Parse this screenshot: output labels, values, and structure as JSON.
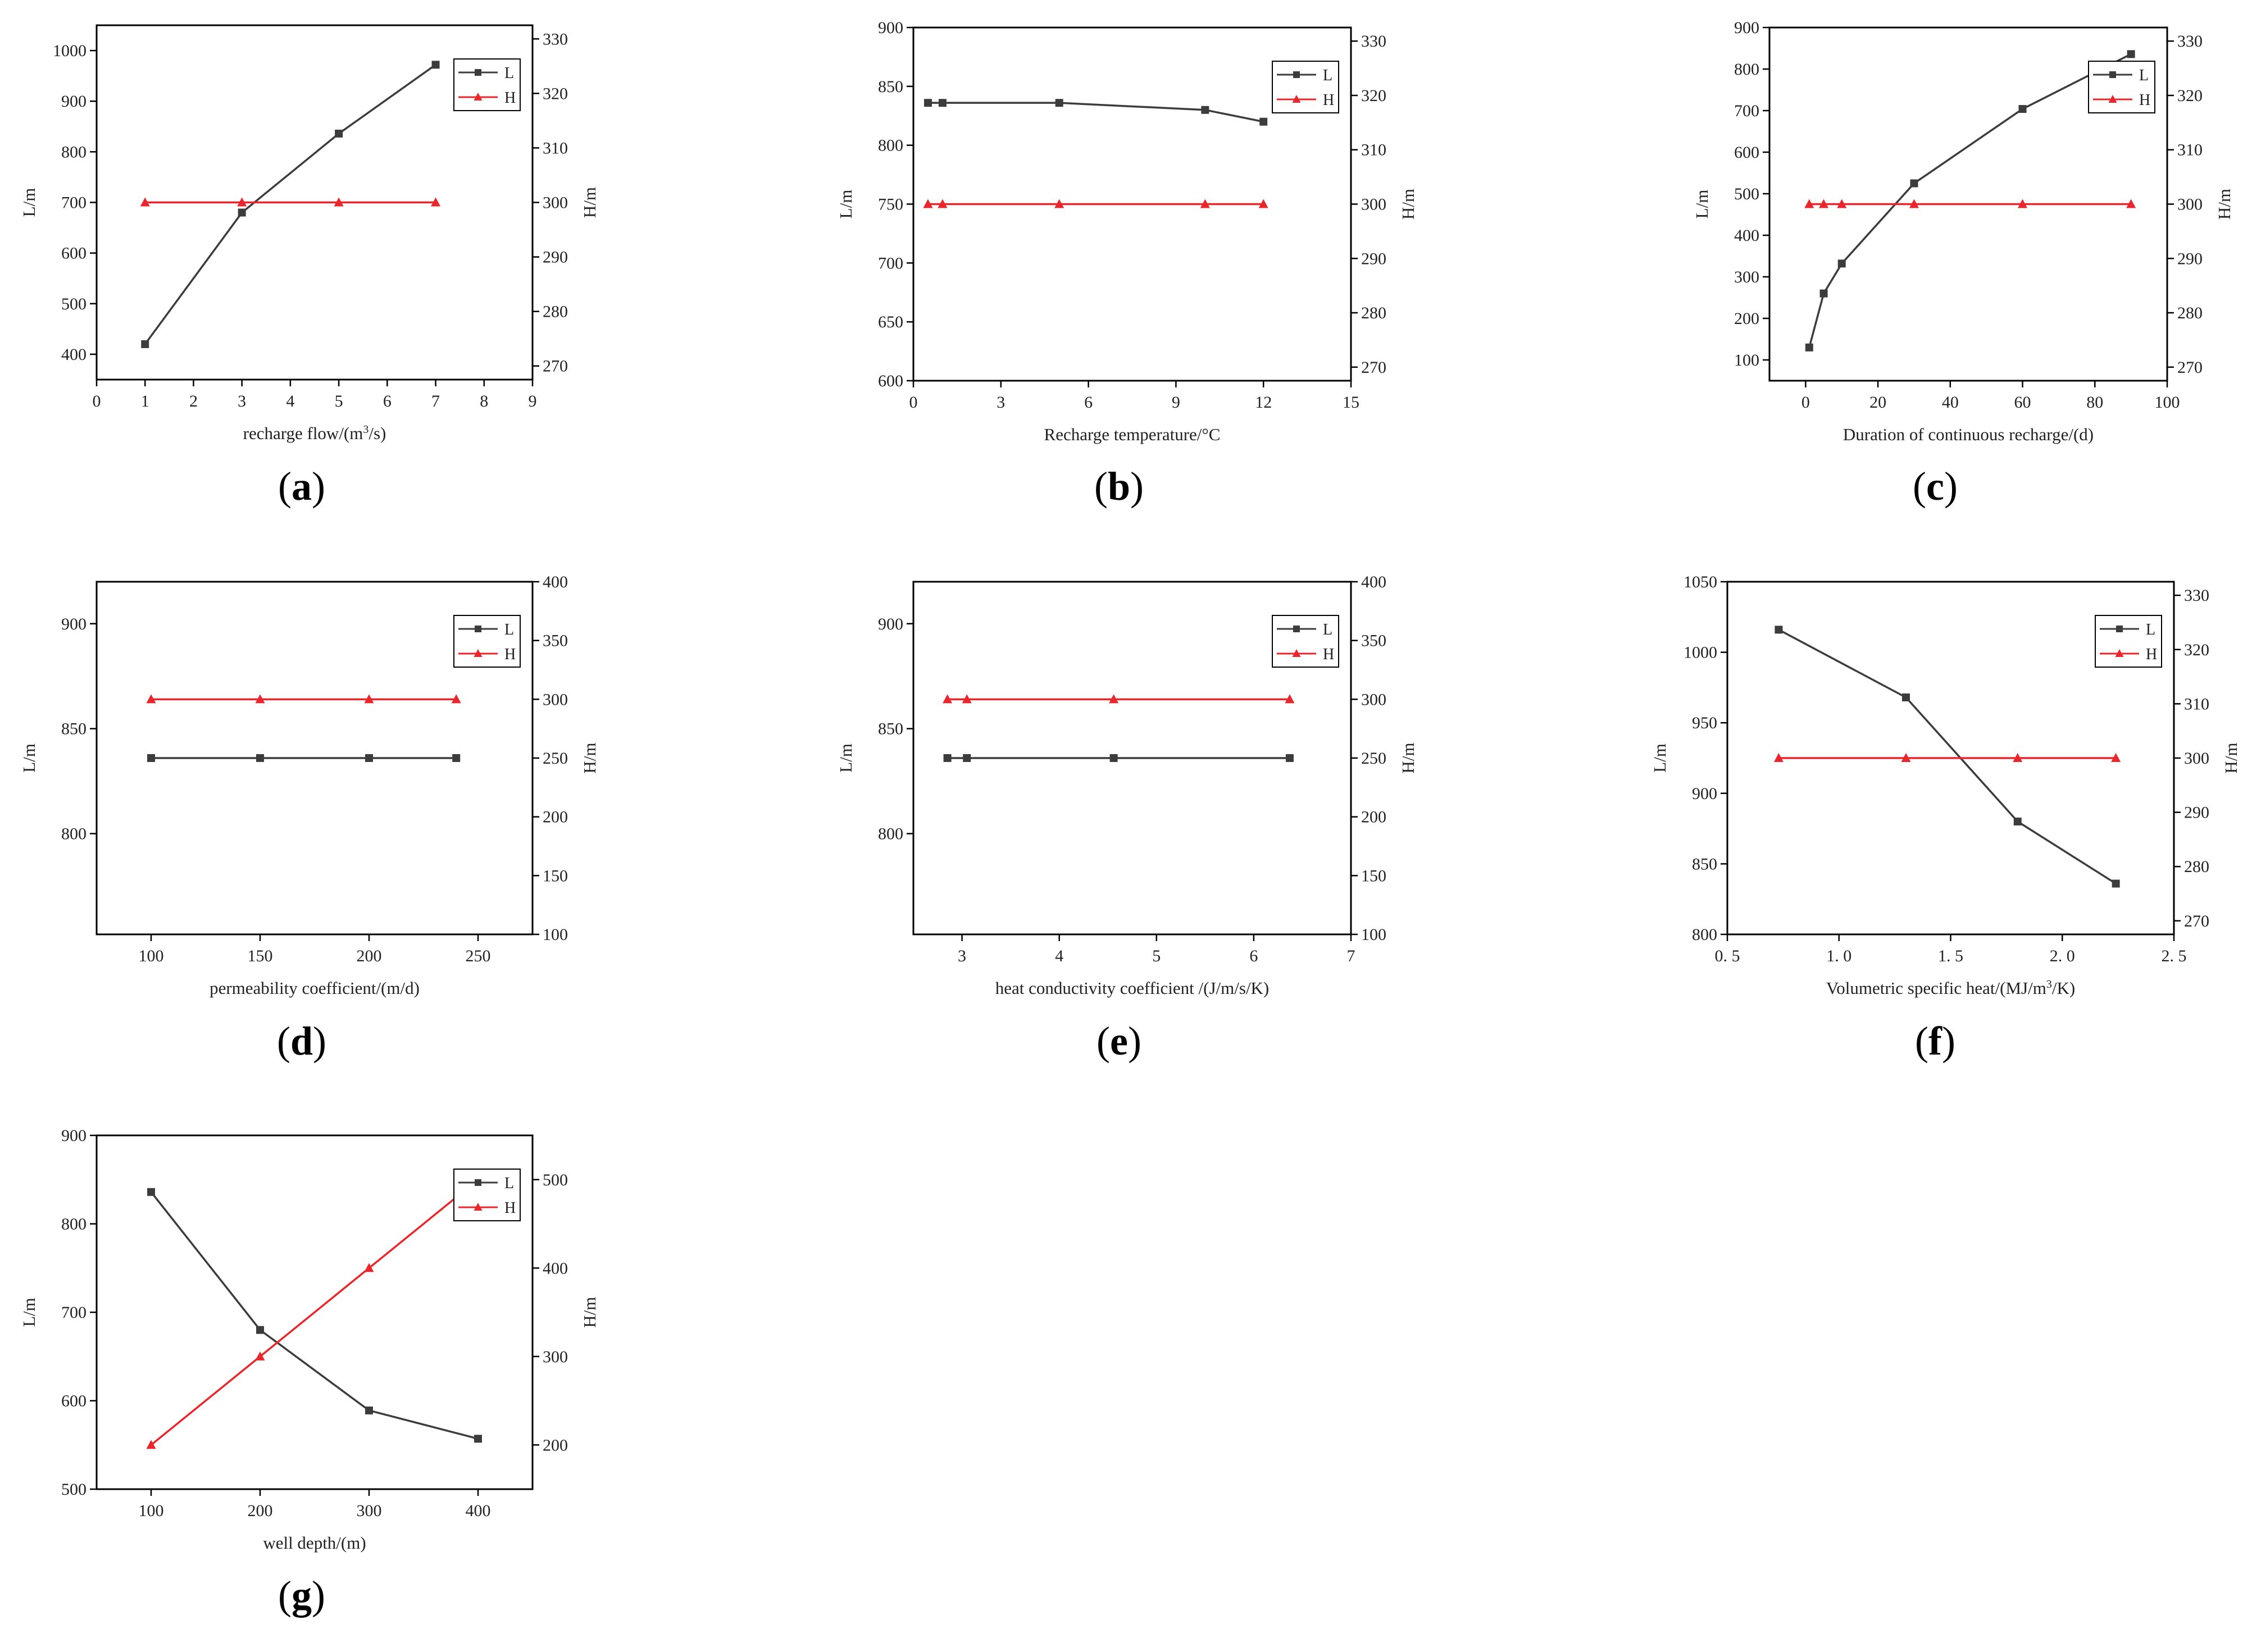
{
  "figure": {
    "colors": {
      "L": "#3c3c3c",
      "H": "#e8262b",
      "axis": "#000000"
    }
  },
  "chart_data": [
    {
      "id": "a",
      "type": "line",
      "panel_label": "a",
      "xlabel": "recharge flow/(m³/s)",
      "ylabel": "L/m",
      "y2label": "H/m",
      "xlim": [
        0,
        9
      ],
      "xticks": [
        0,
        1,
        2,
        3,
        4,
        5,
        6,
        7,
        8,
        9
      ],
      "ylim": [
        350,
        1050
      ],
      "yticks": [
        400,
        500,
        600,
        700,
        800,
        900,
        1000
      ],
      "y2lim": [
        267.5,
        332.5
      ],
      "y2ticks": [
        270,
        280,
        290,
        300,
        310,
        320,
        330
      ],
      "legend": "top-right",
      "series": [
        {
          "name": "L",
          "axis": "left",
          "marker": "square",
          "x": [
            1,
            3,
            5,
            7
          ],
          "y": [
            420,
            680,
            836,
            972
          ]
        },
        {
          "name": "H",
          "axis": "right",
          "marker": "triangle",
          "x": [
            1,
            3,
            5,
            7
          ],
          "y": [
            300,
            300,
            300,
            300
          ]
        }
      ]
    },
    {
      "id": "b",
      "type": "line",
      "panel_label": "b",
      "xlabel": "Recharge temperature/°C",
      "ylabel": "L/m",
      "y2label": "H/m",
      "xlim": [
        0,
        15
      ],
      "xticks": [
        0,
        3,
        6,
        9,
        12,
        15
      ],
      "ylim": [
        600,
        900
      ],
      "yticks": [
        600,
        650,
        700,
        750,
        800,
        850,
        900
      ],
      "y2lim": [
        267.5,
        332.5
      ],
      "y2ticks": [
        270,
        280,
        290,
        300,
        310,
        320,
        330
      ],
      "legend": "top-right",
      "series": [
        {
          "name": "L",
          "axis": "left",
          "marker": "square",
          "x": [
            0.5,
            1,
            5,
            10,
            12
          ],
          "y": [
            836,
            836,
            836,
            830,
            820
          ]
        },
        {
          "name": "H",
          "axis": "right",
          "marker": "triangle",
          "x": [
            0.5,
            1,
            5,
            10,
            12
          ],
          "y": [
            300,
            300,
            300,
            300,
            300
          ]
        }
      ]
    },
    {
      "id": "c",
      "type": "line",
      "panel_label": "c",
      "xlabel": "Duration of continuous recharge/(d)",
      "ylabel": "L/m",
      "y2label": "H/m",
      "xlim": [
        -10,
        100
      ],
      "xticks": [
        0,
        20,
        40,
        60,
        80,
        100
      ],
      "ylim": [
        50,
        900
      ],
      "yticks": [
        100,
        200,
        300,
        400,
        500,
        600,
        700,
        800,
        900
      ],
      "y2lim": [
        267.5,
        332.5
      ],
      "y2ticks": [
        270,
        280,
        290,
        300,
        310,
        320,
        330
      ],
      "legend": "top-right",
      "series": [
        {
          "name": "L",
          "axis": "left",
          "marker": "square",
          "x": [
            1,
            5,
            10,
            30,
            60,
            90
          ],
          "y": [
            130,
            260,
            332,
            525,
            704,
            836
          ]
        },
        {
          "name": "H",
          "axis": "right",
          "marker": "triangle",
          "x": [
            1,
            5,
            10,
            30,
            60,
            90
          ],
          "y": [
            300,
            300,
            300,
            300,
            300,
            300
          ]
        }
      ]
    },
    {
      "id": "d",
      "type": "line",
      "panel_label": "d",
      "xlabel": "permeability coefficient/(m/d)",
      "ylabel": "L/m",
      "y2label": "H/m",
      "xlim": [
        75,
        275
      ],
      "xticks": [
        100,
        150,
        200,
        250
      ],
      "ylim": [
        752,
        920
      ],
      "yticks": [
        800,
        850,
        900
      ],
      "y2lim": [
        100,
        400
      ],
      "y2ticks": [
        100,
        150,
        200,
        250,
        300,
        350,
        400
      ],
      "legend": "top-right",
      "series": [
        {
          "name": "L",
          "axis": "left",
          "marker": "square",
          "x": [
            100,
            150,
            200,
            240
          ],
          "y": [
            836,
            836,
            836,
            836
          ]
        },
        {
          "name": "H",
          "axis": "right",
          "marker": "triangle",
          "x": [
            100,
            150,
            200,
            240
          ],
          "y": [
            300,
            300,
            300,
            300
          ]
        }
      ]
    },
    {
      "id": "e",
      "type": "line",
      "panel_label": "e",
      "xlabel": "heat conductivity coefficient /(J/m/s/K)",
      "ylabel": "L/m",
      "y2label": "H/m",
      "xlim": [
        2.5,
        7
      ],
      "xticks": [
        3,
        4,
        5,
        6,
        7
      ],
      "ylim": [
        752,
        920
      ],
      "yticks": [
        800,
        850,
        900
      ],
      "y2lim": [
        100,
        400
      ],
      "y2ticks": [
        100,
        150,
        200,
        250,
        300,
        350,
        400
      ],
      "legend": "top-right",
      "series": [
        {
          "name": "L",
          "axis": "left",
          "marker": "square",
          "x": [
            2.85,
            3.05,
            4.56,
            6.37
          ],
          "y": [
            836,
            836,
            836,
            836
          ]
        },
        {
          "name": "H",
          "axis": "right",
          "marker": "triangle",
          "x": [
            2.85,
            3.05,
            4.56,
            6.37
          ],
          "y": [
            300,
            300,
            300,
            300
          ]
        }
      ]
    },
    {
      "id": "f",
      "type": "line",
      "panel_label": "f",
      "xlabel": "Volumetric specific heat/(MJ/m³/K)",
      "ylabel": "L/m",
      "y2label": "H/m",
      "xlim": [
        0.5,
        2.5
      ],
      "xticks": [
        0.5,
        1.0,
        1.5,
        2.0,
        2.5
      ],
      "xtick_labels": [
        "0. 5",
        "1. 0",
        "1. 5",
        "2. 0",
        "2. 5"
      ],
      "ylim": [
        800,
        1050
      ],
      "yticks": [
        800,
        850,
        900,
        950,
        1000,
        1050
      ],
      "y2lim": [
        267.5,
        332.5
      ],
      "y2ticks": [
        270,
        280,
        290,
        300,
        310,
        320,
        330
      ],
      "legend": "top-right",
      "series": [
        {
          "name": "L",
          "axis": "left",
          "marker": "square",
          "x": [
            0.73,
            1.3,
            1.8,
            2.24
          ],
          "y": [
            1016,
            968,
            880,
            836
          ]
        },
        {
          "name": "H",
          "axis": "right",
          "marker": "triangle",
          "x": [
            0.73,
            1.3,
            1.8,
            2.24
          ],
          "y": [
            300,
            300,
            300,
            300
          ]
        }
      ]
    },
    {
      "id": "g",
      "type": "line",
      "panel_label": "g",
      "xlabel": "well depth/(m)",
      "ylabel": "L/m",
      "y2label": "H/m",
      "xlim": [
        50,
        450
      ],
      "xticks": [
        100,
        200,
        300,
        400
      ],
      "ylim": [
        500,
        900
      ],
      "yticks": [
        500,
        600,
        700,
        800,
        900
      ],
      "y2lim": [
        150,
        550
      ],
      "y2ticks": [
        200,
        300,
        400,
        500
      ],
      "legend": "top-right",
      "series": [
        {
          "name": "L",
          "axis": "left",
          "marker": "square",
          "x": [
            100,
            200,
            300,
            400
          ],
          "y": [
            836,
            680,
            589,
            557
          ]
        },
        {
          "name": "H",
          "axis": "right",
          "marker": "triangle",
          "x": [
            100,
            200,
            300,
            400
          ],
          "y": [
            200,
            300,
            400,
            500
          ]
        }
      ]
    }
  ]
}
